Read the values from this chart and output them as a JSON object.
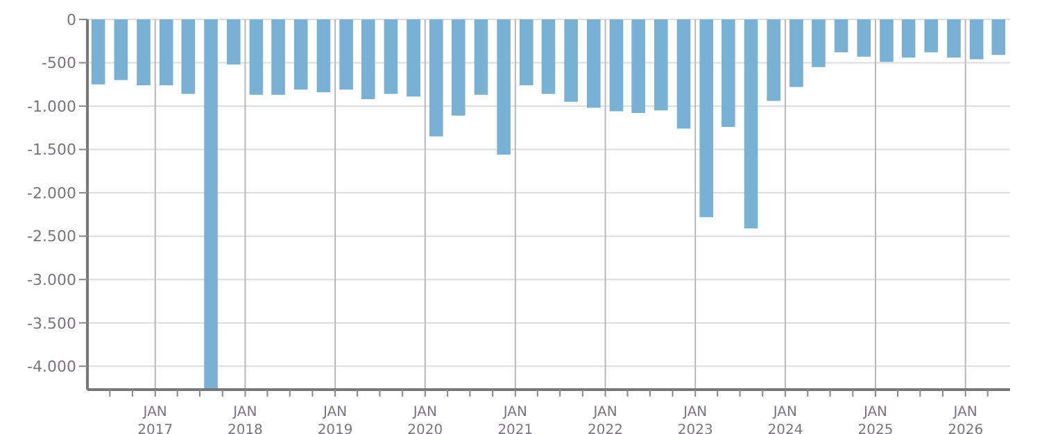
{
  "chart_data": {
    "type": "bar",
    "color": "#78b1d3",
    "x": [
      "2016-05-15",
      "2016-08-15",
      "2016-11-15",
      "2017-02-15",
      "2017-05-15",
      "2017-08-15",
      "2017-11-15",
      "2018-02-15",
      "2018-05-15",
      "2018-08-15",
      "2018-11-15",
      "2019-02-15",
      "2019-05-15",
      "2019-08-15",
      "2019-11-15",
      "2020-02-15",
      "2020-05-15",
      "2020-08-15",
      "2020-11-15",
      "2021-02-15",
      "2021-05-15",
      "2021-08-15",
      "2021-11-15",
      "2022-02-15",
      "2022-05-15",
      "2022-08-15",
      "2022-11-15",
      "2023-02-15",
      "2023-05-15",
      "2023-08-15",
      "2023-11-15",
      "2024-02-15",
      "2024-05-15",
      "2024-08-15",
      "2024-11-15",
      "2025-02-15",
      "2025-05-15",
      "2025-08-15",
      "2025-11-15",
      "2026-02-15",
      "2026-05-15"
    ],
    "values": [
      -750,
      -700,
      -760,
      -760,
      -860,
      -4270,
      -520,
      -870,
      -870,
      -810,
      -840,
      -810,
      -920,
      -860,
      -890,
      -1350,
      -1110,
      -870,
      -1560,
      -760,
      -860,
      -950,
      -1020,
      -1060,
      -1080,
      -1050,
      -1260,
      -2280,
      -1240,
      -2410,
      -940,
      -780,
      -550,
      -380,
      -430,
      -490,
      -440,
      -380,
      -440,
      -460,
      -410
    ],
    "xlim": [
      "2016-04-01",
      "2026-07-01"
    ],
    "xticks": [
      {
        "value": "2016-07-01",
        "label": null
      },
      {
        "value": "2016-10-01",
        "label": null
      },
      {
        "value": "2017-01-01",
        "label": "JAN 2017"
      },
      {
        "value": "2017-04-01",
        "label": null
      },
      {
        "value": "2017-07-01",
        "label": null
      },
      {
        "value": "2017-10-01",
        "label": null
      },
      {
        "value": "2018-01-01",
        "label": "JAN 2018"
      },
      {
        "value": "2018-04-01",
        "label": null
      },
      {
        "value": "2018-07-01",
        "label": null
      },
      {
        "value": "2018-10-01",
        "label": null
      },
      {
        "value": "2019-01-01",
        "label": "JAN 2019"
      },
      {
        "value": "2019-04-01",
        "label": null
      },
      {
        "value": "2019-07-01",
        "label": null
      },
      {
        "value": "2019-10-01",
        "label": null
      },
      {
        "value": "2020-01-01",
        "label": "JAN 2020"
      },
      {
        "value": "2020-04-01",
        "label": null
      },
      {
        "value": "2020-07-01",
        "label": null
      },
      {
        "value": "2020-10-01",
        "label": null
      },
      {
        "value": "2021-01-01",
        "label": "JAN 2021"
      },
      {
        "value": "2021-04-01",
        "label": null
      },
      {
        "value": "2021-07-01",
        "label": null
      },
      {
        "value": "2021-10-01",
        "label": null
      },
      {
        "value": "2022-01-01",
        "label": "JAN 2022"
      },
      {
        "value": "2022-04-01",
        "label": null
      },
      {
        "value": "2022-07-01",
        "label": null
      },
      {
        "value": "2022-10-01",
        "label": null
      },
      {
        "value": "2023-01-01",
        "label": "JAN 2023"
      },
      {
        "value": "2023-04-01",
        "label": null
      },
      {
        "value": "2023-07-01",
        "label": null
      },
      {
        "value": "2023-10-01",
        "label": null
      },
      {
        "value": "2024-01-01",
        "label": "JAN 2024"
      },
      {
        "value": "2024-04-01",
        "label": null
      },
      {
        "value": "2024-07-01",
        "label": null
      },
      {
        "value": "2024-10-01",
        "label": null
      },
      {
        "value": "2025-01-01",
        "label": "JAN 2025"
      },
      {
        "value": "2025-04-01",
        "label": null
      },
      {
        "value": "2025-07-01",
        "label": null
      },
      {
        "value": "2025-10-01",
        "label": null
      },
      {
        "value": "2026-01-01",
        "label": "JAN 2026"
      },
      {
        "value": "2026-04-01",
        "label": null
      }
    ],
    "ylim": [
      -4270,
      0
    ],
    "yticks": [
      {
        "value": -4000,
        "label": "-4.000"
      },
      {
        "value": -3500,
        "label": "-3.500"
      },
      {
        "value": -3000,
        "label": "-3.000"
      },
      {
        "value": -2500,
        "label": "-2.500"
      },
      {
        "value": -2000,
        "label": "-2.000"
      },
      {
        "value": -1500,
        "label": "-1.500"
      },
      {
        "value": -1000,
        "label": "-1.000"
      },
      {
        "value": -500,
        "label": "-500"
      },
      {
        "value": 0,
        "label": "0"
      }
    ],
    "grid": true
  }
}
